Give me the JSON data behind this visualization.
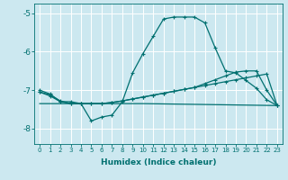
{
  "background_color": "#cce8f0",
  "grid_color": "#ffffff",
  "line_color": "#007070",
  "xlabel": "Humidex (Indice chaleur)",
  "xlim": [
    -0.5,
    23.5
  ],
  "ylim": [
    -8.4,
    -4.75
  ],
  "yticks": [
    -8,
    -7,
    -6,
    -5
  ],
  "xticks": [
    0,
    1,
    2,
    3,
    4,
    5,
    6,
    7,
    8,
    9,
    10,
    11,
    12,
    13,
    14,
    15,
    16,
    17,
    18,
    19,
    20,
    21,
    22,
    23
  ],
  "series1_x": [
    0,
    1,
    2,
    3,
    4,
    5,
    6,
    7,
    8,
    9,
    10,
    11,
    12,
    13,
    14,
    15,
    16,
    17,
    18,
    19,
    20,
    21,
    22,
    23
  ],
  "series1_y": [
    -7.0,
    -7.1,
    -7.3,
    -7.3,
    -7.35,
    -7.8,
    -7.7,
    -7.65,
    -7.3,
    -6.55,
    -6.05,
    -5.6,
    -5.15,
    -5.1,
    -5.1,
    -5.1,
    -5.25,
    -5.9,
    -6.5,
    -6.55,
    -6.75,
    -6.95,
    -7.25,
    -7.4
  ],
  "series2_x": [
    0,
    1,
    2,
    3,
    4,
    5,
    6,
    7,
    8,
    9,
    10,
    11,
    12,
    13,
    14,
    15,
    16,
    17,
    18,
    19,
    20,
    21,
    22,
    23
  ],
  "series2_y": [
    -7.05,
    -7.15,
    -7.3,
    -7.35,
    -7.35,
    -7.35,
    -7.35,
    -7.32,
    -7.28,
    -7.23,
    -7.18,
    -7.13,
    -7.08,
    -7.03,
    -6.98,
    -6.93,
    -6.88,
    -6.83,
    -6.78,
    -6.73,
    -6.68,
    -6.63,
    -6.58,
    -7.4
  ],
  "series3_x": [
    0,
    1,
    2,
    3,
    4,
    5,
    6,
    7,
    8,
    9,
    10,
    11,
    12,
    13,
    14,
    15,
    16,
    17,
    18,
    19,
    20,
    21,
    22,
    23
  ],
  "series3_y": [
    -7.05,
    -7.12,
    -7.28,
    -7.35,
    -7.35,
    -7.35,
    -7.35,
    -7.32,
    -7.28,
    -7.23,
    -7.18,
    -7.13,
    -7.08,
    -7.03,
    -6.98,
    -6.93,
    -6.83,
    -6.73,
    -6.63,
    -6.53,
    -6.5,
    -6.5,
    -7.0,
    -7.4
  ],
  "series4_x": [
    0,
    4,
    10,
    23
  ],
  "series4_y": [
    -7.35,
    -7.35,
    -7.35,
    -7.4
  ],
  "figsize": [
    3.2,
    2.0
  ],
  "dpi": 100
}
